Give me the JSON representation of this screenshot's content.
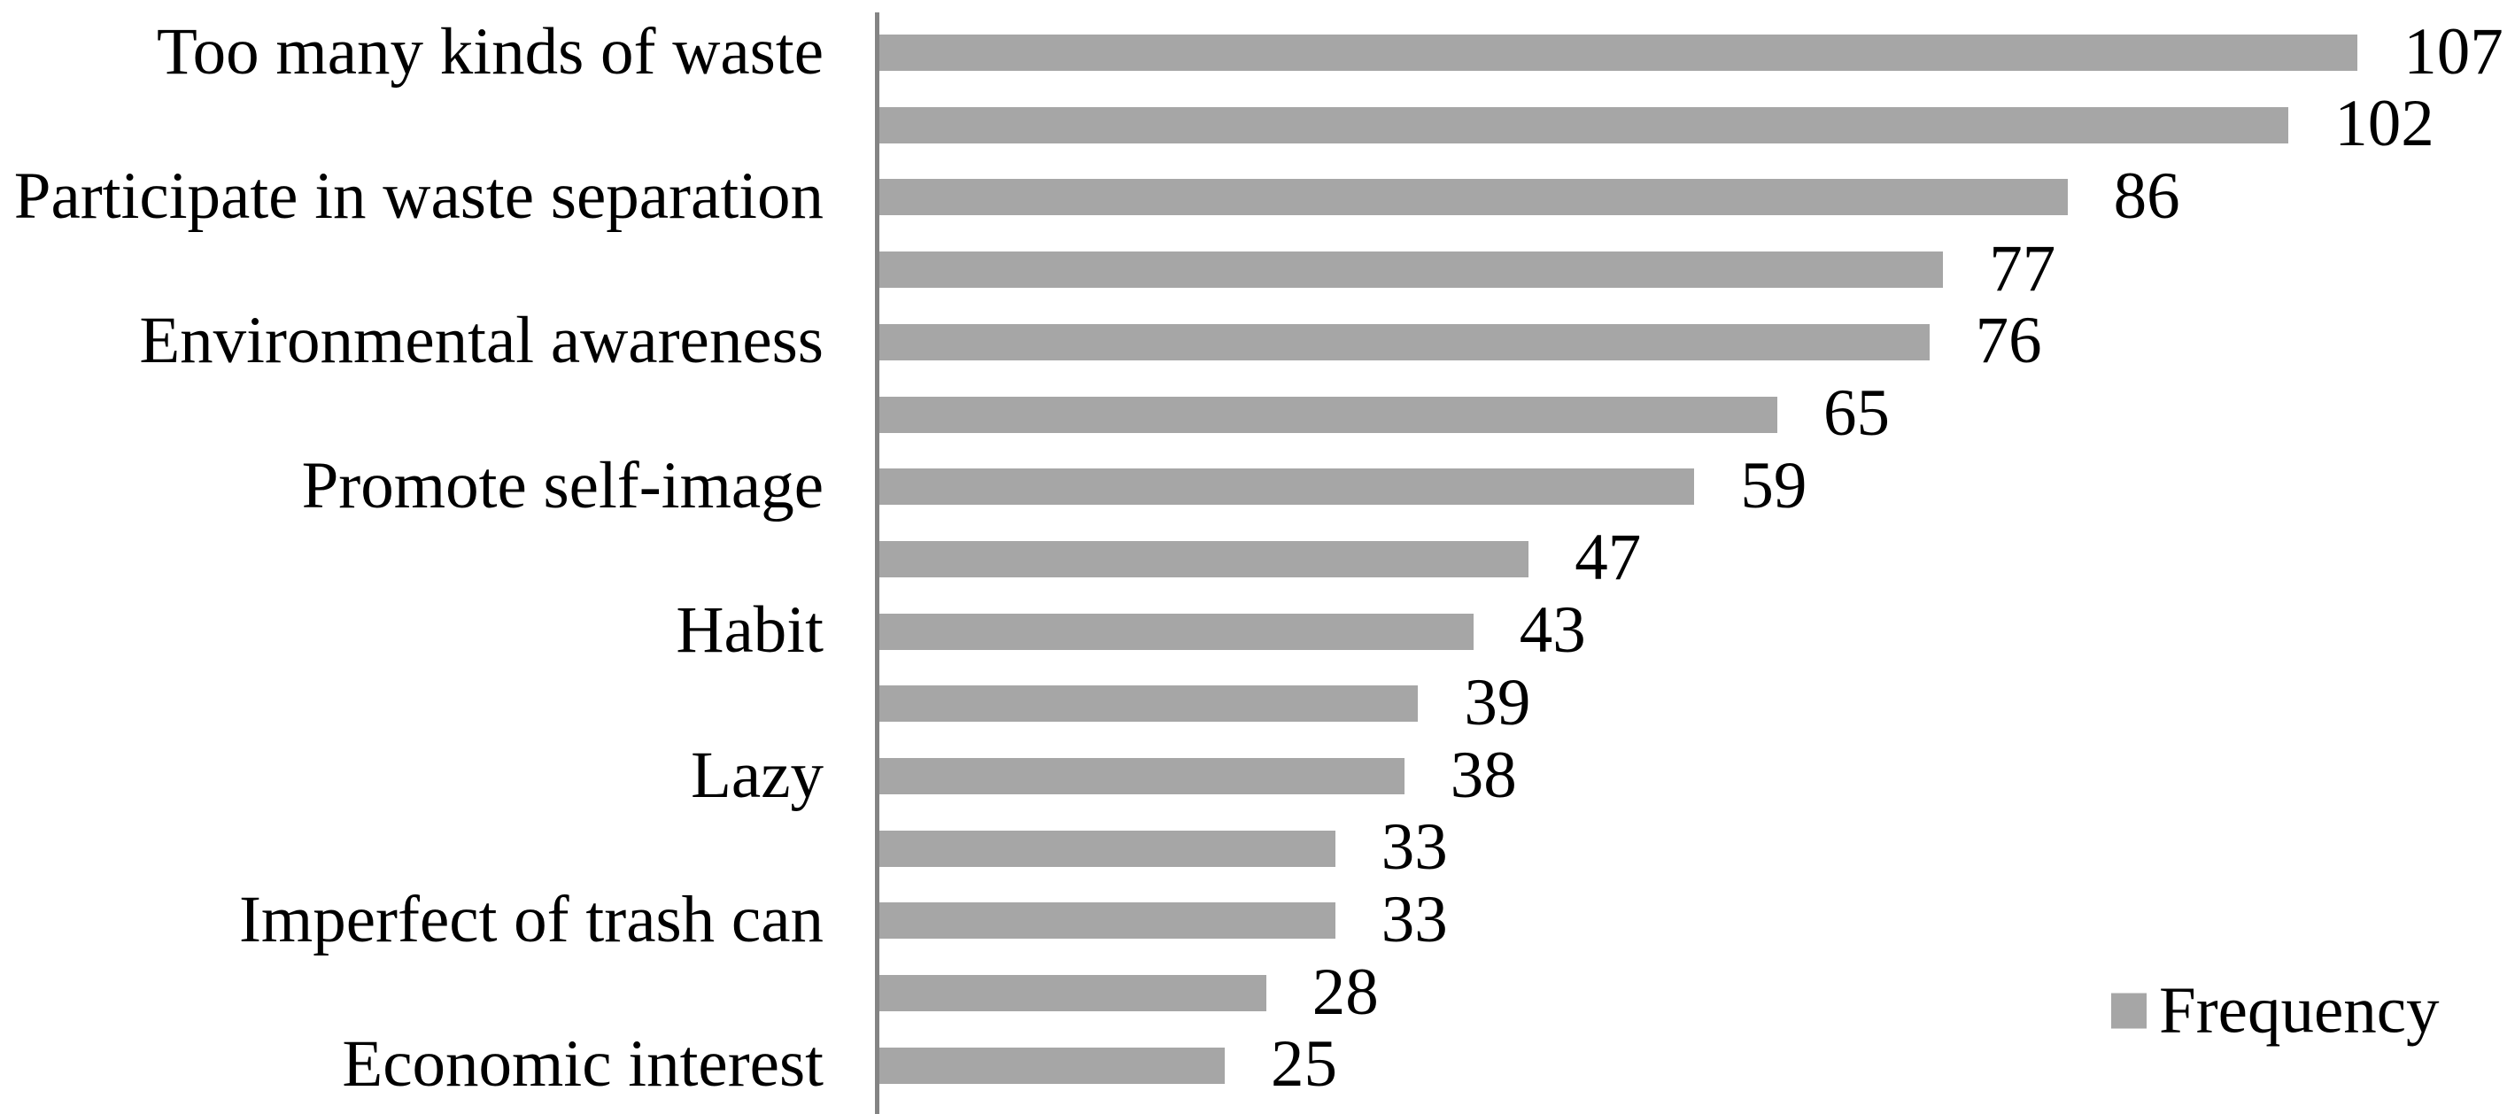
{
  "chart_data": {
    "type": "bar",
    "orientation": "horizontal",
    "title": "",
    "xlabel": "",
    "ylabel": "",
    "xlim": [
      0,
      118
    ],
    "gridlines": false,
    "data_labels_visible": true,
    "bar_color": "#A6A6A6",
    "axis_color": "#848484",
    "legend": {
      "label": "Frequency",
      "position": "bottom-right",
      "swatch_color": "#A6A6A6"
    },
    "categories": [
      "Too many kinds of waste",
      "",
      "Participate in waste separation",
      "",
      "Environmental awareness",
      "",
      "Promote self-image",
      "",
      "Habit",
      "",
      "Lazy",
      "",
      "Imperfect of trash can",
      "",
      "Economic interest"
    ],
    "series": [
      {
        "name": "Frequency",
        "values": [
          107,
          102,
          86,
          77,
          76,
          65,
          59,
          47,
          43,
          39,
          38,
          33,
          33,
          28,
          25
        ]
      }
    ]
  }
}
